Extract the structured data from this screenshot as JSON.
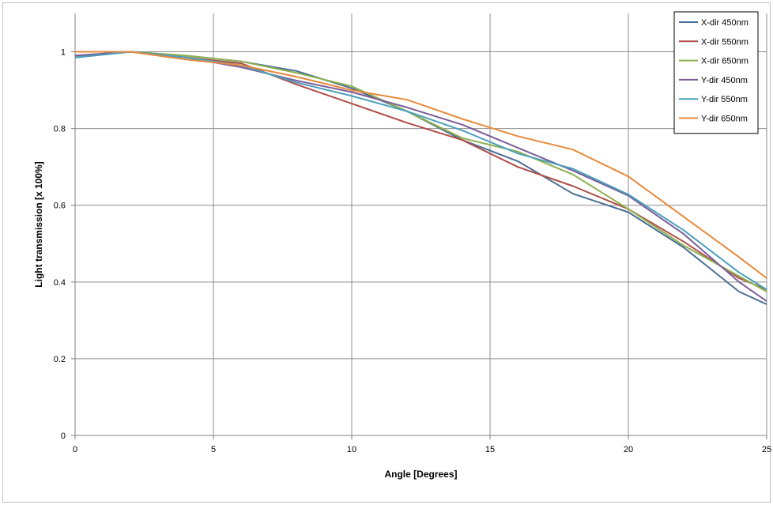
{
  "chart_data": {
    "type": "line",
    "title": "",
    "xlabel": "Angle [Degrees]",
    "ylabel": "Light transmission  [x 100%]",
    "xlim": [
      0,
      25
    ],
    "ylim": [
      0,
      1.1
    ],
    "x_ticks": [
      0,
      5,
      10,
      15,
      20,
      25
    ],
    "x_tick_labels": [
      "0",
      "5",
      "10",
      "15",
      "20",
      "25"
    ],
    "y_ticks": [
      0,
      0.2,
      0.4,
      0.6,
      0.8,
      1
    ],
    "y_tick_labels": [
      "0",
      "0.2",
      "0.4",
      "0.6",
      "0.8",
      "1"
    ],
    "grid": true,
    "legend_position": "top-right",
    "x": [
      0,
      2,
      4,
      6,
      8,
      10,
      12,
      14,
      16,
      18,
      20,
      22,
      24,
      25
    ],
    "series": [
      {
        "name": "X-dir 450nm",
        "color": "#4a6f94",
        "values": [
          0.985,
          1.0,
          0.99,
          0.975,
          0.95,
          0.905,
          0.845,
          0.77,
          0.715,
          0.63,
          0.582,
          0.49,
          0.375,
          0.342
        ]
      },
      {
        "name": "X-dir 550nm",
        "color": "#b04d49",
        "values": [
          0.99,
          1.0,
          0.985,
          0.97,
          0.915,
          0.865,
          0.815,
          0.77,
          0.7,
          0.65,
          0.59,
          0.505,
          0.41,
          0.38
        ]
      },
      {
        "name": "X-dir 650nm",
        "color": "#8eb04e",
        "values": [
          0.99,
          1.0,
          0.99,
          0.975,
          0.945,
          0.91,
          0.845,
          0.775,
          0.74,
          0.68,
          0.59,
          0.495,
          0.415,
          0.375
        ]
      },
      {
        "name": "Y-dir 450nm",
        "color": "#7a5d99",
        "values": [
          0.99,
          1.0,
          0.985,
          0.96,
          0.925,
          0.895,
          0.855,
          0.81,
          0.75,
          0.69,
          0.625,
          0.525,
          0.4,
          0.35
        ]
      },
      {
        "name": "Y-dir 550nm",
        "color": "#4aa0bb",
        "values": [
          0.985,
          1.0,
          0.985,
          0.965,
          0.92,
          0.885,
          0.845,
          0.795,
          0.735,
          0.695,
          0.628,
          0.535,
          0.425,
          0.38
        ]
      },
      {
        "name": "Y-dir 650nm",
        "color": "#e88a3c",
        "values": [
          1.0,
          1.0,
          0.98,
          0.965,
          0.935,
          0.9,
          0.875,
          0.825,
          0.78,
          0.745,
          0.675,
          0.57,
          0.465,
          0.41
        ]
      }
    ]
  }
}
